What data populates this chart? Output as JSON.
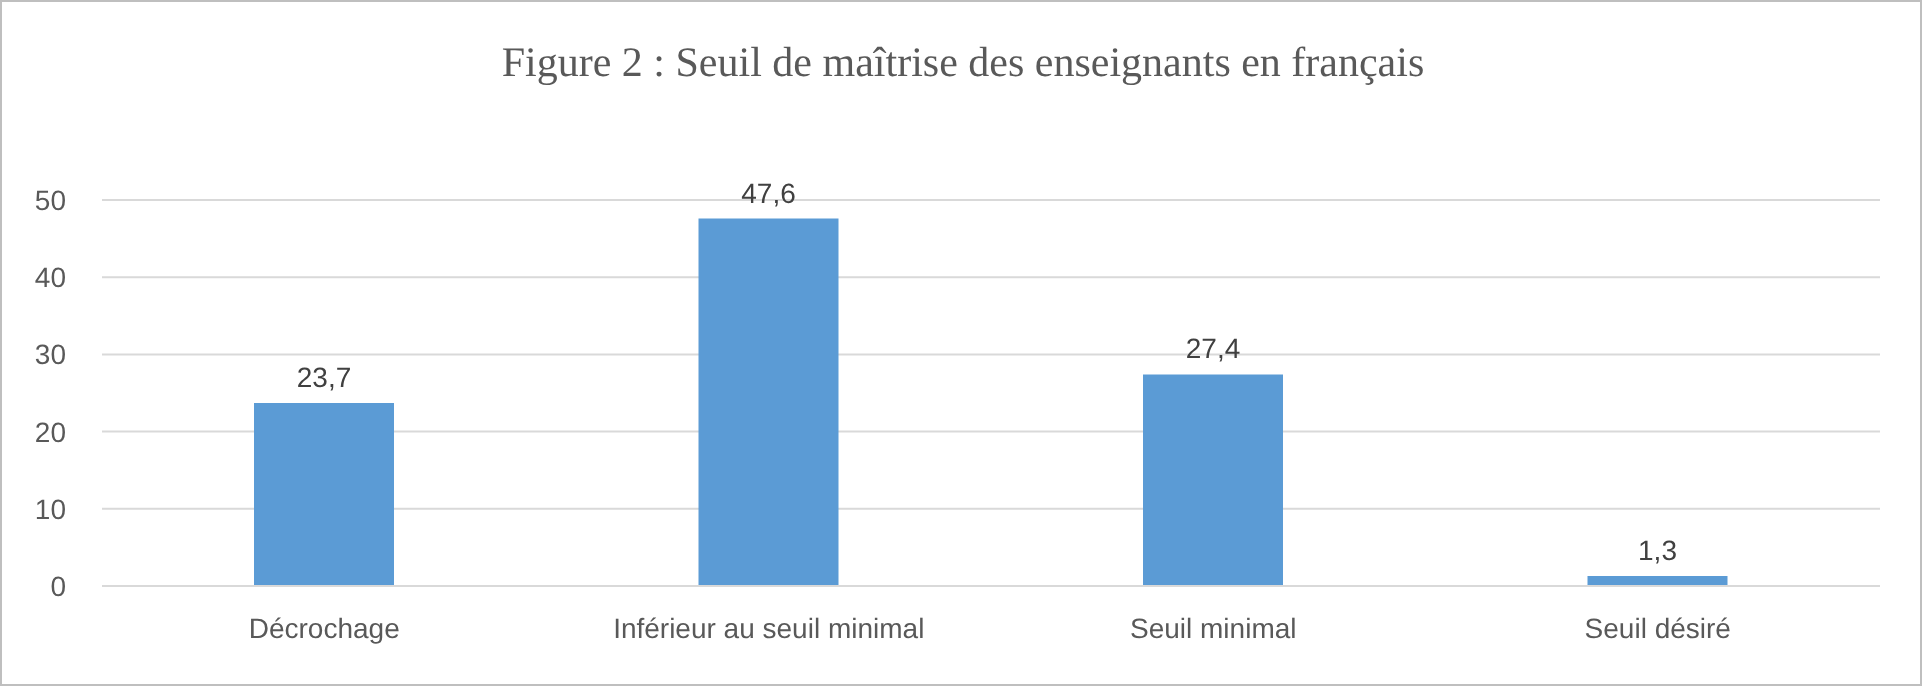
{
  "chart_data": {
    "type": "bar",
    "title": "Figure 2 : Seuil de maîtrise des enseignants en français",
    "categories": [
      "Décrochage",
      "Inférieur au seuil minimal",
      "Seuil minimal",
      "Seuil désiré"
    ],
    "values": [
      23.7,
      47.6,
      27.4,
      1.3
    ],
    "value_labels": [
      "23,7",
      "47,6",
      "27,4",
      "1,3"
    ],
    "color": "#5b9bd5",
    "ylim": [
      0,
      50
    ],
    "yticks": [
      0,
      10,
      20,
      30,
      40,
      50
    ],
    "grid": "y"
  }
}
